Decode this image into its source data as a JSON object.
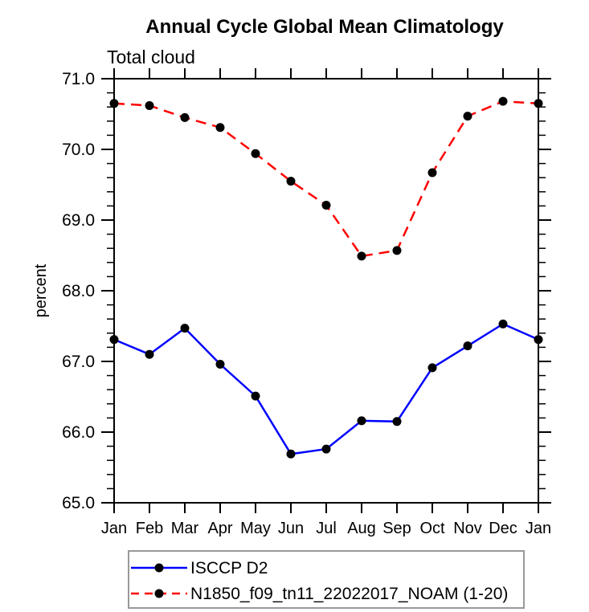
{
  "window": {
    "background_color": "#ffffff"
  },
  "chart_data": {
    "type": "line",
    "title": "Annual Cycle Global Mean Climatology",
    "subtitle": "Total cloud",
    "xlabel": "",
    "ylabel": "percent",
    "categories": [
      "Jan",
      "Feb",
      "Mar",
      "Apr",
      "May",
      "Jun",
      "Jul",
      "Aug",
      "Sep",
      "Oct",
      "Nov",
      "Dec",
      "Jan"
    ],
    "ylim": [
      65.0,
      71.0
    ],
    "ytick_step": 1.0,
    "ytick_minor_step": 0.2,
    "ytick_labels": [
      "65.0",
      "66.0",
      "67.0",
      "68.0",
      "69.0",
      "70.0",
      "71.0"
    ],
    "grid": false,
    "legend_position": "bottom",
    "axis_color": "#000000",
    "legend_border_color": "#999999",
    "series": [
      {
        "name": "ISCCP D2",
        "line_color": "#0000ff",
        "line_style": "solid",
        "marker": "filled-circle",
        "marker_color": "#000000",
        "values": [
          67.31,
          67.1,
          67.47,
          66.96,
          66.51,
          65.69,
          65.76,
          66.16,
          66.15,
          66.91,
          67.22,
          67.53,
          67.31
        ]
      },
      {
        "name": "N1850_f09_tn11_22022017_NOAM (1-20)",
        "line_color": "#ff0000",
        "line_style": "dashed",
        "marker": "filled-circle",
        "marker_color": "#000000",
        "values": [
          70.65,
          70.62,
          70.45,
          70.31,
          69.94,
          69.55,
          69.21,
          68.49,
          68.57,
          69.67,
          70.47,
          70.68,
          70.65
        ]
      }
    ]
  }
}
